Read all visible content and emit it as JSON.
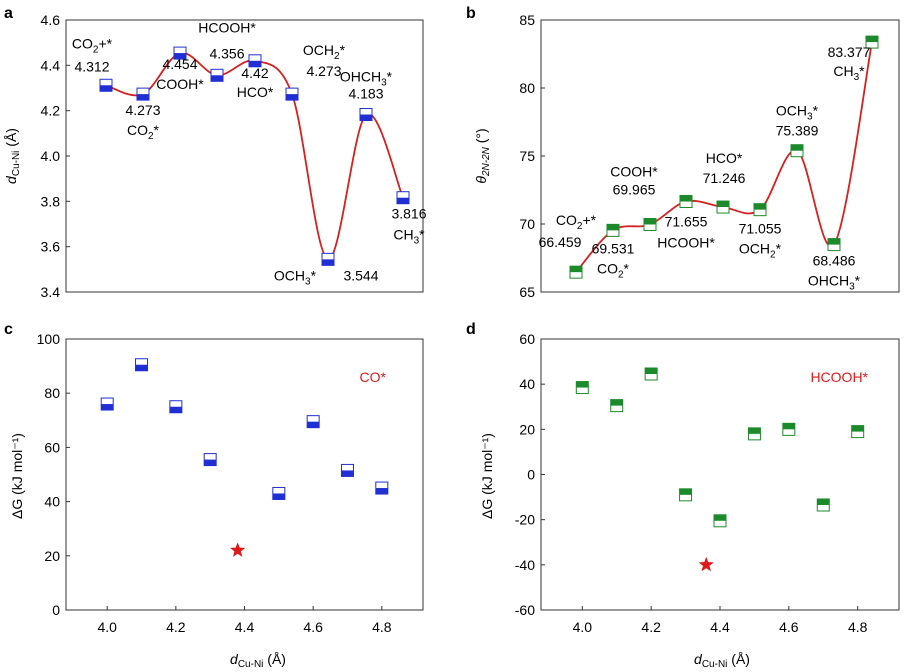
{
  "colors": {
    "blue": "#1f2fd4",
    "green": "#1c8a2a",
    "curve": "#d42020",
    "star": "#e01818",
    "axis": "#333333"
  },
  "chart_data": [
    {
      "panel": "a",
      "type": "line",
      "xlim": [
        0,
        9.4
      ],
      "ylim": [
        3.4,
        4.6
      ],
      "yticks": [
        "3.4",
        "3.6",
        "3.8",
        "4.0",
        "4.2",
        "4.4",
        "4.6"
      ],
      "ylabel_main": "d",
      "ylabel_sub": "Cu-Ni",
      "ylabel_unit": " (Å)",
      "points": [
        {
          "state": "CO2+*",
          "value": 4.312,
          "label": "4.312",
          "name": "CO",
          "sub": "2",
          "suffix": "+*"
        },
        {
          "state": "CO2*",
          "value": 4.273,
          "label": "4.273",
          "name": "CO",
          "sub": "2",
          "suffix": "*"
        },
        {
          "state": "COOH*",
          "value": 4.454,
          "label": "4.454",
          "name": "COOH*",
          "sub": "",
          "suffix": ""
        },
        {
          "state": "HCOOH*",
          "value": 4.356,
          "label": "4.356",
          "name": "HCOOH*",
          "sub": "",
          "suffix": ""
        },
        {
          "state": "HCO*",
          "value": 4.42,
          "label": "4.42",
          "name": "HCO*",
          "sub": "",
          "suffix": ""
        },
        {
          "state": "OCH2*",
          "value": 4.273,
          "label": "4.273",
          "name": "OCH",
          "sub": "2",
          "suffix": "*"
        },
        {
          "state": "OCH3*",
          "value": 3.544,
          "label": "3.544",
          "name": "OCH",
          "sub": "3",
          "suffix": "*"
        },
        {
          "state": "OHCH3*",
          "value": 4.183,
          "label": "4.183",
          "name": "OHCH",
          "sub": "3",
          "suffix": "*"
        },
        {
          "state": "CH3*",
          "value": 3.816,
          "label": "3.816",
          "name": "CH",
          "sub": "3",
          "suffix": "*"
        }
      ]
    },
    {
      "panel": "b",
      "type": "line",
      "xlim": [
        0,
        8.0
      ],
      "ylim": [
        65,
        85
      ],
      "yticks": [
        "65",
        "70",
        "75",
        "80",
        "85"
      ],
      "ylabel_main": "θ",
      "ylabel_sub": "2N-2N",
      "ylabel_unit": " (°)",
      "points": [
        {
          "state": "CO2+*",
          "value": 66.459,
          "label": "66.459",
          "name": "CO",
          "sub": "2",
          "suffix": "+*"
        },
        {
          "state": "CO2*",
          "value": 69.531,
          "label": "69.531",
          "name": "CO",
          "sub": "2",
          "suffix": "*"
        },
        {
          "state": "COOH*",
          "value": 69.965,
          "label": "69.965",
          "name": "COOH*",
          "sub": "",
          "suffix": ""
        },
        {
          "state": "HCOOH*",
          "value": 71.655,
          "label": "71.655",
          "name": "HCOOH*",
          "sub": "",
          "suffix": ""
        },
        {
          "state": "HCO*",
          "value": 71.246,
          "label": "71.246",
          "name": "HCO*",
          "sub": "",
          "suffix": ""
        },
        {
          "state": "OCH2*",
          "value": 71.055,
          "label": "71.055",
          "name": "OCH",
          "sub": "2",
          "suffix": "*"
        },
        {
          "state": "OCH3*",
          "value": 75.389,
          "label": "75.389",
          "name": "OCH",
          "sub": "3",
          "suffix": "*"
        },
        {
          "state": "OHCH3*",
          "value": 68.486,
          "label": "68.486",
          "name": "OHCH",
          "sub": "3",
          "suffix": "*"
        },
        {
          "state": "CH3*",
          "value": 83.377,
          "label": "83.377",
          "name": "CH",
          "sub": "3",
          "suffix": "*"
        }
      ]
    },
    {
      "panel": "c",
      "type": "scatter",
      "title": "CO*",
      "xlim": [
        3.88,
        4.92
      ],
      "ylim": [
        0,
        100
      ],
      "xticks": [
        "4.0",
        "4.2",
        "4.4",
        "4.6",
        "4.8"
      ],
      "yticks": [
        "0",
        "20",
        "40",
        "60",
        "80",
        "100"
      ],
      "xlabel_main": "d",
      "xlabel_sub": "Cu-Ni",
      "xlabel_unit": " (Å)",
      "ylabel": "ΔG (kJ mol⁻¹)",
      "x": [
        4.0,
        4.1,
        4.2,
        4.3,
        4.5,
        4.6,
        4.7,
        4.8
      ],
      "y": [
        76,
        90.5,
        75,
        55.5,
        43,
        69.5,
        51.5,
        45
      ],
      "star": {
        "x": 4.38,
        "y": 22
      }
    },
    {
      "panel": "d",
      "type": "scatter",
      "title": "HCOOH*",
      "xlim": [
        3.88,
        4.92
      ],
      "ylim": [
        -60,
        60
      ],
      "xticks": [
        "4.0",
        "4.2",
        "4.4",
        "4.6",
        "4.8"
      ],
      "yticks": [
        "-60",
        "-40",
        "-20",
        "0",
        "20",
        "40",
        "60"
      ],
      "xlabel_main": "d",
      "xlabel_sub": "Cu-Ni",
      "xlabel_unit": " (Å)",
      "ylabel": "ΔG (kJ mol⁻¹)",
      "x": [
        4.0,
        4.1,
        4.2,
        4.3,
        4.4,
        4.5,
        4.6,
        4.7,
        4.8
      ],
      "y": [
        38.5,
        30.5,
        44.5,
        -9,
        -20.5,
        18,
        20,
        -13.5,
        19
      ],
      "star": {
        "x": 4.36,
        "y": -40
      }
    }
  ]
}
